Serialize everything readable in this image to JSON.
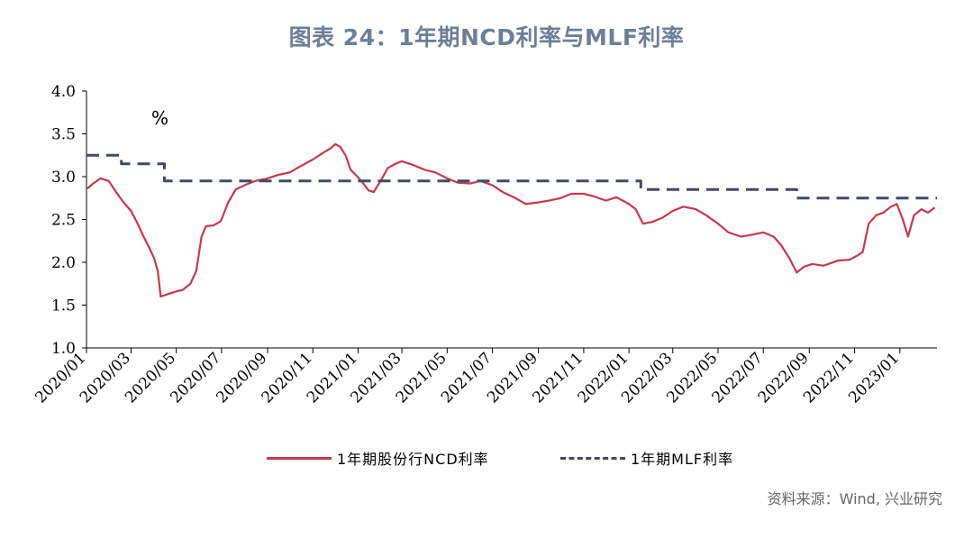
{
  "title": "图表 24：1年期NCD利率与MLF利率",
  "source": "资料来源：Wind, 兴业研究",
  "colors": {
    "ncd": "#c8384b",
    "mlf": "#3e4b66",
    "title": "#6b7f99"
  },
  "chart_data": {
    "type": "line",
    "unit_label": "%",
    "ylim": [
      1.0,
      4.0
    ],
    "y_ticks": [
      "4.0",
      "3.5",
      "3.0",
      "2.5",
      "2.0",
      "1.5",
      "1.0"
    ],
    "x_ticks": [
      "2020/01",
      "2020/03",
      "2020/05",
      "2020/07",
      "2020/09",
      "2020/11",
      "2021/01",
      "2021/03",
      "2021/05",
      "2021/07",
      "2021/09",
      "2021/11",
      "2022/01",
      "2022/03",
      "2022/05",
      "2022/07",
      "2022/09",
      "2022/11",
      "2023/01"
    ],
    "x_range": [
      "2020-01-01",
      "2023-02-20"
    ],
    "grid": false,
    "legend_position": "bottom",
    "series": [
      {
        "name": "1年期股份行NCD利率",
        "style": "solid",
        "points": [
          [
            "2020-01-02",
            2.86
          ],
          [
            "2020-01-10",
            2.92
          ],
          [
            "2020-01-20",
            2.98
          ],
          [
            "2020-01-31",
            2.95
          ],
          [
            "2020-02-10",
            2.82
          ],
          [
            "2020-02-20",
            2.7
          ],
          [
            "2020-03-01",
            2.6
          ],
          [
            "2020-03-10",
            2.45
          ],
          [
            "2020-03-18",
            2.3
          ],
          [
            "2020-03-25",
            2.18
          ],
          [
            "2020-04-01",
            2.05
          ],
          [
            "2020-04-06",
            1.9
          ],
          [
            "2020-04-10",
            1.6
          ],
          [
            "2020-04-20",
            1.63
          ],
          [
            "2020-05-01",
            1.66
          ],
          [
            "2020-05-10",
            1.68
          ],
          [
            "2020-05-20",
            1.75
          ],
          [
            "2020-05-28",
            1.9
          ],
          [
            "2020-06-04",
            2.3
          ],
          [
            "2020-06-10",
            2.42
          ],
          [
            "2020-06-20",
            2.43
          ],
          [
            "2020-06-30",
            2.48
          ],
          [
            "2020-07-10",
            2.7
          ],
          [
            "2020-07-20",
            2.85
          ],
          [
            "2020-08-01",
            2.9
          ],
          [
            "2020-08-15",
            2.95
          ],
          [
            "2020-09-01",
            2.98
          ],
          [
            "2020-09-15",
            3.02
          ],
          [
            "2020-10-01",
            3.05
          ],
          [
            "2020-10-15",
            3.12
          ],
          [
            "2020-11-01",
            3.2
          ],
          [
            "2020-11-15",
            3.28
          ],
          [
            "2020-11-25",
            3.33
          ],
          [
            "2020-12-01",
            3.38
          ],
          [
            "2020-12-08",
            3.35
          ],
          [
            "2020-12-15",
            3.25
          ],
          [
            "2020-12-22",
            3.08
          ],
          [
            "2020-12-31",
            3.0
          ],
          [
            "2021-01-08",
            2.92
          ],
          [
            "2021-01-15",
            2.84
          ],
          [
            "2021-01-22",
            2.82
          ],
          [
            "2021-02-01",
            2.96
          ],
          [
            "2021-02-10",
            3.1
          ],
          [
            "2021-02-20",
            3.15
          ],
          [
            "2021-03-01",
            3.18
          ],
          [
            "2021-03-15",
            3.14
          ],
          [
            "2021-04-01",
            3.08
          ],
          [
            "2021-04-15",
            3.05
          ],
          [
            "2021-05-01",
            2.98
          ],
          [
            "2021-05-15",
            2.93
          ],
          [
            "2021-06-01",
            2.92
          ],
          [
            "2021-06-15",
            2.95
          ],
          [
            "2021-07-01",
            2.9
          ],
          [
            "2021-07-15",
            2.82
          ],
          [
            "2021-08-01",
            2.75
          ],
          [
            "2021-08-15",
            2.68
          ],
          [
            "2021-09-01",
            2.7
          ],
          [
            "2021-09-15",
            2.72
          ],
          [
            "2021-10-01",
            2.75
          ],
          [
            "2021-10-15",
            2.8
          ],
          [
            "2021-11-01",
            2.8
          ],
          [
            "2021-11-15",
            2.77
          ],
          [
            "2021-12-01",
            2.72
          ],
          [
            "2021-12-15",
            2.76
          ],
          [
            "2022-01-01",
            2.68
          ],
          [
            "2022-01-10",
            2.62
          ],
          [
            "2022-01-20",
            2.45
          ],
          [
            "2022-02-01",
            2.47
          ],
          [
            "2022-02-15",
            2.52
          ],
          [
            "2022-03-01",
            2.6
          ],
          [
            "2022-03-15",
            2.65
          ],
          [
            "2022-04-01",
            2.62
          ],
          [
            "2022-04-15",
            2.55
          ],
          [
            "2022-05-01",
            2.45
          ],
          [
            "2022-05-15",
            2.35
          ],
          [
            "2022-06-01",
            2.3
          ],
          [
            "2022-06-15",
            2.32
          ],
          [
            "2022-07-01",
            2.35
          ],
          [
            "2022-07-15",
            2.3
          ],
          [
            "2022-07-25",
            2.2
          ],
          [
            "2022-08-05",
            2.05
          ],
          [
            "2022-08-15",
            1.88
          ],
          [
            "2022-08-25",
            1.95
          ],
          [
            "2022-09-05",
            1.98
          ],
          [
            "2022-09-20",
            1.96
          ],
          [
            "2022-10-10",
            2.02
          ],
          [
            "2022-10-25",
            2.03
          ],
          [
            "2022-11-05",
            2.08
          ],
          [
            "2022-11-12",
            2.12
          ],
          [
            "2022-11-20",
            2.45
          ],
          [
            "2022-11-30",
            2.55
          ],
          [
            "2022-12-10",
            2.58
          ],
          [
            "2022-12-20",
            2.65
          ],
          [
            "2022-12-28",
            2.68
          ],
          [
            "2023-01-05",
            2.5
          ],
          [
            "2023-01-12",
            2.3
          ],
          [
            "2023-01-20",
            2.55
          ],
          [
            "2023-01-30",
            2.62
          ],
          [
            "2023-02-08",
            2.58
          ],
          [
            "2023-02-17",
            2.64
          ]
        ]
      },
      {
        "name": "1年期MLF利率",
        "style": "dashed",
        "points": [
          [
            "2020-01-01",
            3.25
          ],
          [
            "2020-02-17",
            3.25
          ],
          [
            "2020-02-17",
            3.15
          ],
          [
            "2020-04-15",
            3.15
          ],
          [
            "2020-04-15",
            2.95
          ],
          [
            "2022-01-17",
            2.95
          ],
          [
            "2022-01-17",
            2.85
          ],
          [
            "2022-08-15",
            2.85
          ],
          [
            "2022-08-15",
            2.75
          ],
          [
            "2023-02-20",
            2.75
          ]
        ]
      }
    ]
  }
}
